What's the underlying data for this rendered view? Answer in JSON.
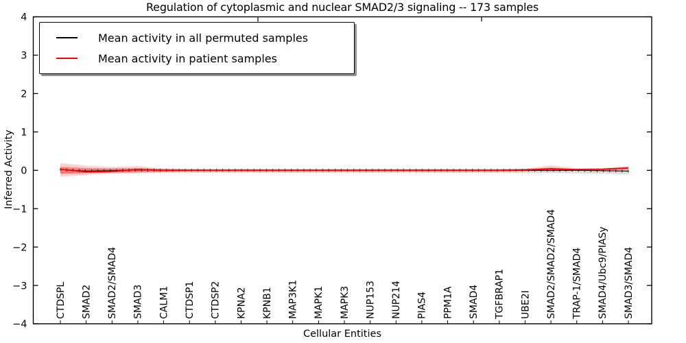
{
  "chart_data": {
    "type": "line",
    "title": "Regulation of cytoplasmic and nuclear SMAD2/3 signaling -- 173 samples",
    "xlabel": "Cellular Entities",
    "ylabel": "Inferred Activity",
    "ylim": [
      -4,
      4
    ],
    "yticks": [
      4,
      3,
      2,
      1,
      0,
      -1,
      -2,
      -3,
      -4
    ],
    "ytick_labels": [
      "4",
      "3",
      "2",
      "1",
      "0",
      "−1",
      "−2",
      "−3",
      "−4"
    ],
    "categories": [
      "CTDSPL",
      "SMAD2",
      "SMAD2/SMAD4",
      "SMAD3",
      "CALM1",
      "CTDSP1",
      "CTDSP2",
      "KPNA2",
      "KPNB1",
      "MAP3K1",
      "MAPK1",
      "MAPK3",
      "NUP153",
      "NUP214",
      "PIAS4",
      "PPM1A",
      "SMAD4",
      "TGFBRAP1",
      "UBE2I",
      "SMAD2/SMAD2/SMAD4",
      "TRAP-1/SMAD4",
      "SMAD4/Ubc9/PIASy",
      "SMAD3/SMAD4"
    ],
    "series": [
      {
        "name": "Mean activity in all permuted samples",
        "color": "#000000",
        "values": [
          0.02,
          -0.02,
          -0.01,
          0.01,
          0,
          0,
          0,
          0,
          0,
          0,
          0,
          0,
          0,
          0,
          0,
          0,
          0,
          0,
          0,
          0,
          0,
          -0.01,
          -0.02
        ]
      },
      {
        "name": "Mean activity in patient samples",
        "color": "#ff0000",
        "values": [
          0.03,
          -0.04,
          -0.03,
          0.02,
          0,
          0,
          0,
          0,
          0,
          0,
          0,
          0,
          0,
          0,
          0,
          0,
          0,
          0,
          0.01,
          0.04,
          0.02,
          0.03,
          0.06
        ]
      }
    ],
    "bands": [
      {
        "name": "permuted-range",
        "color": "#999999",
        "alpha": 0.32,
        "upper": [
          0.05,
          0.04,
          0.04,
          0.04,
          0.04,
          0.04,
          0.04,
          0.04,
          0.04,
          0.04,
          0.04,
          0.04,
          0.04,
          0.04,
          0.04,
          0.04,
          0.04,
          0.04,
          0.04,
          0.04,
          0.04,
          0.04,
          0.05
        ],
        "lower": [
          -0.09,
          -0.08,
          -0.07,
          -0.07,
          -0.07,
          -0.07,
          -0.07,
          -0.07,
          -0.07,
          -0.07,
          -0.07,
          -0.07,
          -0.07,
          -0.07,
          -0.07,
          -0.07,
          -0.07,
          -0.07,
          -0.07,
          -0.07,
          -0.08,
          -0.09,
          -0.11
        ]
      },
      {
        "name": "patient-range-outer",
        "color": "#ff0000",
        "alpha": 0.18,
        "upper": [
          0.19,
          0.12,
          0.09,
          0.11,
          0.05,
          0.03,
          0.03,
          0.03,
          0.03,
          0.03,
          0.03,
          0.03,
          0.03,
          0.03,
          0.03,
          0.03,
          0.03,
          0.03,
          0.04,
          0.13,
          0.05,
          0.06,
          0.11
        ],
        "lower": [
          -0.17,
          -0.12,
          -0.08,
          -0.07,
          -0.05,
          -0.03,
          -0.03,
          -0.03,
          -0.03,
          -0.03,
          -0.03,
          -0.03,
          -0.03,
          -0.03,
          -0.03,
          -0.03,
          -0.03,
          -0.03,
          -0.02,
          -0.03,
          -0.01,
          0.0,
          0.02
        ]
      },
      {
        "name": "patient-range-inner",
        "color": "#ff0000",
        "alpha": 0.32,
        "upper": [
          0.1,
          0.06,
          0.05,
          0.06,
          0.03,
          0.02,
          0.02,
          0.02,
          0.02,
          0.02,
          0.02,
          0.02,
          0.02,
          0.02,
          0.02,
          0.02,
          0.02,
          0.02,
          0.03,
          0.07,
          0.03,
          0.04,
          0.09
        ],
        "lower": [
          -0.09,
          -0.07,
          -0.05,
          -0.04,
          -0.03,
          -0.02,
          -0.02,
          -0.02,
          -0.02,
          -0.02,
          -0.02,
          -0.02,
          -0.02,
          -0.02,
          -0.02,
          -0.02,
          -0.02,
          -0.02,
          -0.01,
          -0.01,
          0.0,
          0.01,
          0.03
        ]
      }
    ],
    "n_points": 92,
    "label_every": 4,
    "legend_position": "upper left",
    "grid": false,
    "sample_count": "173"
  }
}
